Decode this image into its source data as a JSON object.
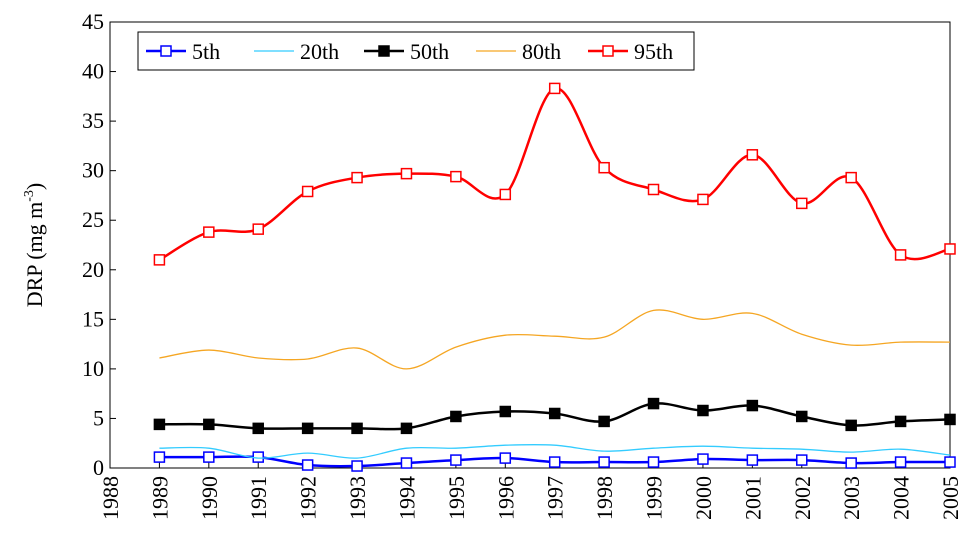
{
  "chart_data": {
    "type": "line",
    "y_label": {
      "text": "DRP (mg m",
      "superscript": "-3",
      "suffix": ")"
    },
    "x": [
      1989,
      1990,
      1991,
      1992,
      1993,
      1994,
      1995,
      1996,
      1997,
      1998,
      1999,
      2000,
      2001,
      2002,
      2003,
      2004,
      2005
    ],
    "xlim": [
      1988,
      2005
    ],
    "xticks": [
      1988,
      1989,
      1990,
      1991,
      1992,
      1993,
      1994,
      1995,
      1996,
      1997,
      1998,
      1999,
      2000,
      2001,
      2002,
      2003,
      2004,
      2005
    ],
    "ylim": [
      0,
      45
    ],
    "yticks": [
      0,
      5,
      10,
      15,
      20,
      25,
      30,
      35,
      40,
      45
    ],
    "grid": false,
    "legend": "top-left",
    "series": [
      {
        "name": "5th",
        "color": "#0000ff",
        "marker": "square",
        "marker_fill": "#ffffff",
        "line_width": 2.5,
        "values": [
          1.1,
          1.1,
          1.1,
          0.3,
          0.2,
          0.5,
          0.8,
          1.0,
          0.6,
          0.6,
          0.6,
          0.9,
          0.8,
          0.8,
          0.5,
          0.6,
          0.6
        ]
      },
      {
        "name": "20th",
        "color": "#33ccff",
        "marker": "none",
        "line_width": 1.3,
        "values": [
          2.0,
          2.0,
          1.0,
          1.5,
          1.0,
          2.0,
          2.0,
          2.3,
          2.3,
          1.7,
          2.0,
          2.2,
          2.0,
          1.9,
          1.6,
          1.9,
          1.3
        ]
      },
      {
        "name": "50th",
        "color": "#000000",
        "marker": "square",
        "marker_fill": "#000000",
        "line_width": 2.5,
        "values": [
          4.4,
          4.4,
          4.0,
          4.0,
          4.0,
          4.0,
          5.2,
          5.7,
          5.5,
          4.7,
          6.5,
          5.8,
          6.3,
          5.2,
          4.3,
          4.7,
          4.9
        ]
      },
      {
        "name": "80th",
        "color": "#f5a623",
        "marker": "none",
        "line_width": 1.3,
        "values": [
          11.1,
          11.9,
          11.1,
          11.0,
          12.1,
          10.0,
          12.2,
          13.4,
          13.3,
          13.2,
          15.9,
          15.0,
          15.6,
          13.5,
          12.4,
          12.7,
          12.7
        ]
      },
      {
        "name": "95th",
        "color": "#ff0000",
        "marker": "square",
        "marker_fill": "#ffffff",
        "line_width": 2.5,
        "values": [
          21.0,
          23.8,
          24.1,
          27.9,
          29.3,
          29.7,
          29.4,
          27.6,
          38.3,
          30.3,
          28.1,
          27.1,
          31.6,
          26.7,
          29.3,
          21.5,
          22.1
        ]
      }
    ]
  }
}
